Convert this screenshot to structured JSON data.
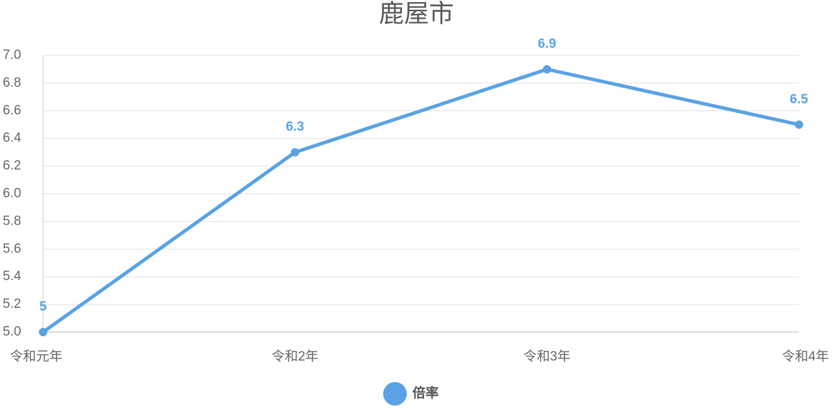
{
  "chart_data": {
    "type": "line",
    "title": "鹿屋市",
    "categories": [
      "令和元年",
      "令和2年",
      "令和3年",
      "令和4年"
    ],
    "series": [
      {
        "name": "倍率",
        "color": "#5aa2e5",
        "values": [
          5,
          6.3,
          6.9,
          6.5
        ]
      }
    ],
    "ylim": [
      5,
      7
    ],
    "yticks": [
      {
        "value": 5,
        "label": "5.0"
      },
      5.2,
      5.4,
      5.6,
      5.8,
      {
        "value": 6,
        "label": "6.0"
      },
      6.2,
      6.4,
      6.6,
      6.8,
      {
        "value": 7,
        "label": "7.0"
      }
    ],
    "grid": true,
    "legend": "bottom"
  }
}
